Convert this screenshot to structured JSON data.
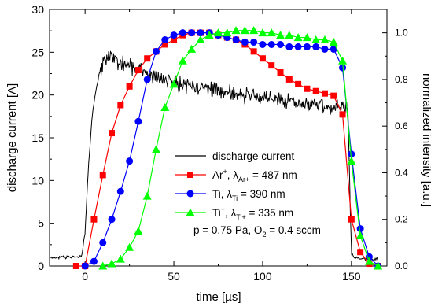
{
  "chart_data": {
    "type": "line",
    "xlabel": "time [µs]",
    "ylabel_left": "discharge current [A]",
    "ylabel_right": "normalized intensity [a.u.]",
    "xlim": [
      -20,
      170
    ],
    "ylim_left": [
      0,
      30
    ],
    "ylim_right": [
      0,
      1.1
    ],
    "x_ticks": [
      0,
      50,
      100,
      150
    ],
    "y_left_ticks": [
      0,
      5,
      10,
      15,
      20,
      25,
      30
    ],
    "y_right_ticks": [
      "0.0",
      "0.2",
      "0.4",
      "0.6",
      "0.8",
      "1.0"
    ],
    "annotation": "p = 0.75 Pa, O₂ = 0.4 sccm",
    "legend": {
      "placement": "center-right",
      "entries": [
        {
          "label": "discharge current",
          "series": "current"
        },
        {
          "label": "Ar⁺, λAr+ = 487 nm",
          "main": "Ar",
          "sup": "+",
          "mid": ", λ",
          "sub": "Ar+",
          "tail": " = 487 nm",
          "series": "ar"
        },
        {
          "label": "Ti, λTi = 390 nm",
          "main": "Ti",
          "sup": "",
          "mid": ", λ",
          "sub": "Ti",
          "tail": " = 390 nm",
          "series": "ti"
        },
        {
          "label": "Ti⁺, λTi+ = 335 nm",
          "main": "Ti",
          "sup": "+",
          "mid": ", λ",
          "sub": "Ti+",
          "tail": " = 335 nm",
          "series": "tiplus"
        }
      ]
    },
    "series": [
      {
        "key": "current",
        "axis": "left",
        "color": "#000000",
        "marker": "none",
        "x": [
          -20,
          -10,
          -2,
          0,
          2,
          4,
          6,
          8,
          10,
          12,
          14,
          16,
          18,
          20,
          25,
          30,
          35,
          40,
          45,
          50,
          55,
          60,
          65,
          70,
          75,
          80,
          85,
          90,
          95,
          100,
          105,
          110,
          115,
          120,
          125,
          130,
          135,
          140,
          143,
          146,
          148,
          150,
          152,
          155,
          160,
          165
        ],
        "y": [
          1.0,
          1.0,
          1.1,
          4.0,
          12.0,
          17.5,
          20.5,
          22.5,
          23.5,
          24.2,
          24.5,
          24.3,
          24.0,
          23.8,
          23.4,
          23.0,
          22.5,
          22.0,
          21.6,
          21.4,
          21.2,
          21.0,
          20.9,
          20.7,
          20.6,
          20.4,
          20.2,
          20.0,
          19.9,
          19.7,
          19.5,
          19.4,
          19.3,
          19.1,
          19.0,
          18.9,
          18.7,
          18.6,
          18.5,
          18.6,
          18.5,
          1.5,
          1.0,
          0.9,
          0.8,
          0.8
        ]
      },
      {
        "key": "ar",
        "axis": "right",
        "color": "#ff0000",
        "marker": "square",
        "x": [
          -5,
          0,
          5,
          10,
          15,
          20,
          25,
          30,
          35,
          40,
          45,
          50,
          55,
          60,
          65,
          70,
          75,
          80,
          85,
          90,
          95,
          100,
          105,
          110,
          115,
          120,
          125,
          130,
          135,
          140,
          145,
          150,
          155,
          160,
          165
        ],
        "y": [
          0.0,
          0.0,
          0.2,
          0.39,
          0.57,
          0.69,
          0.77,
          0.84,
          0.89,
          0.92,
          0.95,
          0.97,
          0.99,
          1.0,
          1.0,
          1.0,
          0.99,
          0.98,
          0.97,
          0.95,
          0.92,
          0.89,
          0.86,
          0.83,
          0.8,
          0.78,
          0.76,
          0.75,
          0.74,
          0.73,
          0.65,
          0.2,
          0.06,
          0.01,
          0.0
        ]
      },
      {
        "key": "ti",
        "axis": "right",
        "color": "#0000ff",
        "marker": "circle",
        "x": [
          0,
          5,
          10,
          15,
          20,
          25,
          30,
          35,
          40,
          45,
          50,
          55,
          60,
          65,
          70,
          75,
          80,
          85,
          90,
          95,
          100,
          105,
          110,
          115,
          120,
          125,
          130,
          135,
          140,
          145,
          150,
          155,
          160,
          165
        ],
        "y": [
          0.0,
          0.02,
          0.1,
          0.2,
          0.32,
          0.45,
          0.62,
          0.8,
          0.92,
          0.97,
          0.99,
          1.0,
          1.0,
          1.0,
          1.0,
          0.99,
          0.98,
          0.97,
          0.96,
          0.96,
          0.95,
          0.95,
          0.95,
          0.94,
          0.94,
          0.94,
          0.94,
          0.93,
          0.93,
          0.85,
          0.48,
          0.16,
          0.04,
          0.0
        ]
      },
      {
        "key": "tiplus",
        "axis": "right",
        "color": "#00ff00",
        "marker": "triangle",
        "x": [
          10,
          15,
          20,
          25,
          30,
          35,
          40,
          45,
          50,
          55,
          60,
          65,
          70,
          75,
          80,
          85,
          90,
          95,
          100,
          105,
          110,
          115,
          120,
          125,
          130,
          135,
          140,
          145,
          150,
          155,
          160,
          165
        ],
        "y": [
          0.0,
          0.01,
          0.03,
          0.08,
          0.15,
          0.3,
          0.5,
          0.68,
          0.78,
          0.88,
          0.93,
          0.97,
          0.99,
          1.0,
          1.0,
          1.01,
          1.01,
          1.01,
          1.0,
          1.0,
          0.99,
          0.99,
          0.98,
          0.98,
          0.97,
          0.97,
          0.96,
          0.88,
          0.45,
          0.13,
          0.02,
          0.0
        ]
      }
    ]
  }
}
